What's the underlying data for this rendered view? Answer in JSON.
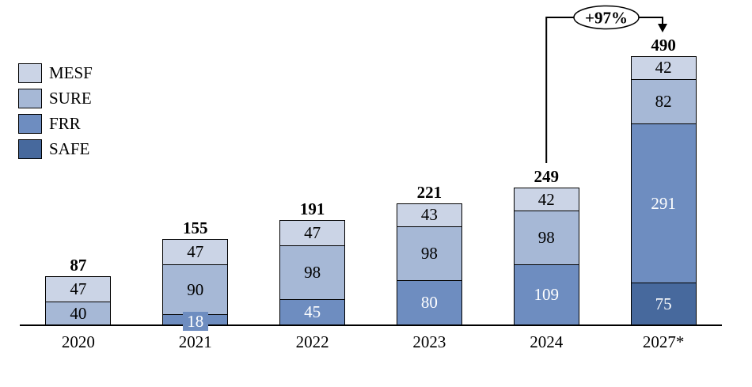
{
  "chart_data": {
    "type": "stacked-bar",
    "title": "",
    "legend_position": "top-left",
    "grid": false,
    "legend": [
      {
        "name": "MESF",
        "color": "#cbd4e6",
        "text_color": "#000000"
      },
      {
        "name": "SURE",
        "color": "#a6b8d6",
        "text_color": "#000000"
      },
      {
        "name": "FRR",
        "color": "#6e8dc0",
        "text_color": "#ffffff"
      },
      {
        "name": "SAFE",
        "color": "#47699d",
        "text_color": "#ffffff"
      }
    ],
    "categories": [
      "2020",
      "2021",
      "2022",
      "2023",
      "2024",
      "2027*"
    ],
    "bars": [
      {
        "category": "2020",
        "total": 87,
        "segments": [
          {
            "name": "SURE",
            "value": 40
          },
          {
            "name": "MESF",
            "value": 47
          }
        ]
      },
      {
        "category": "2021",
        "total": 155,
        "segments": [
          {
            "name": "FRR",
            "value": 18
          },
          {
            "name": "SURE",
            "value": 90
          },
          {
            "name": "MESF",
            "value": 47
          }
        ]
      },
      {
        "category": "2022",
        "total": 191,
        "segments": [
          {
            "name": "FRR",
            "value": 45
          },
          {
            "name": "SURE",
            "value": 98
          },
          {
            "name": "MESF",
            "value": 47
          }
        ]
      },
      {
        "category": "2023",
        "total": 221,
        "segments": [
          {
            "name": "FRR",
            "value": 80
          },
          {
            "name": "SURE",
            "value": 98
          },
          {
            "name": "MESF",
            "value": 43
          }
        ]
      },
      {
        "category": "2024",
        "total": 249,
        "segments": [
          {
            "name": "FRR",
            "value": 109
          },
          {
            "name": "SURE",
            "value": 98
          },
          {
            "name": "MESF",
            "value": 42
          }
        ]
      },
      {
        "category": "2027*",
        "total": 490,
        "segments": [
          {
            "name": "SAFE",
            "value": 75
          },
          {
            "name": "FRR",
            "value": 291
          },
          {
            "name": "SURE",
            "value": 82
          },
          {
            "name": "MESF",
            "value": 42
          }
        ]
      }
    ],
    "annotation": {
      "label": "+97%",
      "from_category": "2024",
      "to_category": "2027*"
    },
    "colors": {
      "axis": "#000000",
      "background": "#ffffff",
      "segment_border": "#000000"
    }
  }
}
